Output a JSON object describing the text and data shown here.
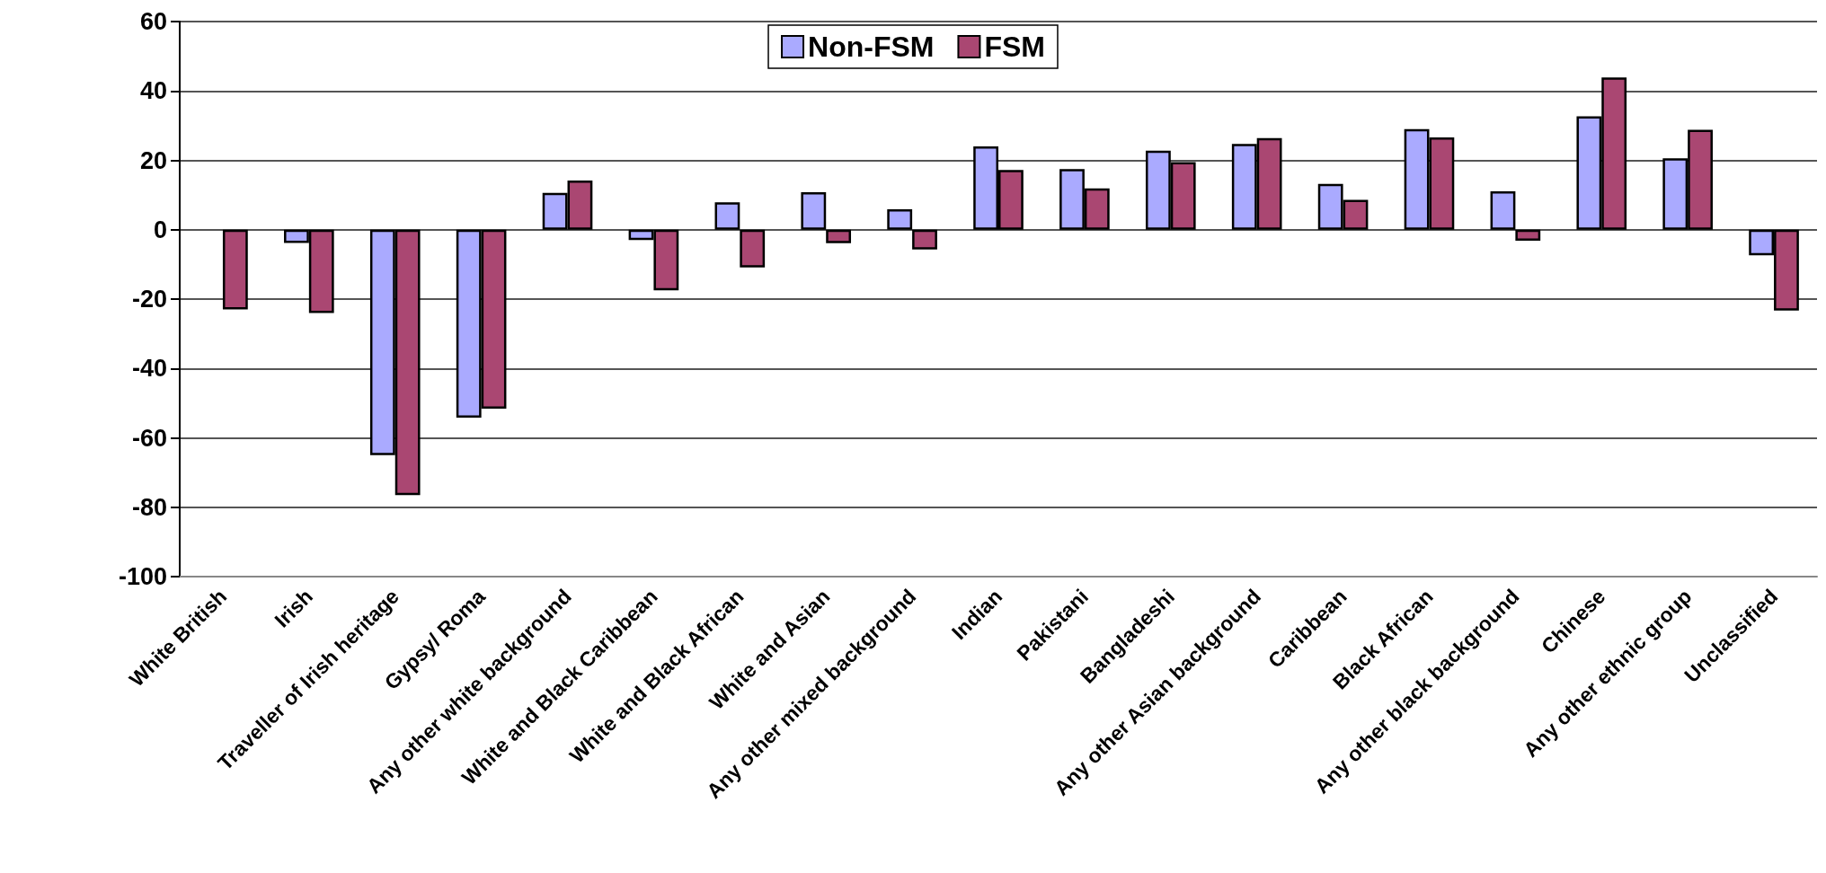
{
  "chart_data": {
    "type": "bar",
    "categories": [
      "White British",
      "Irish",
      "Traveller of Irish heritage",
      "Gypsy/ Roma",
      "Any other white background",
      "White and Black Caribbean",
      "White and Black African",
      "White and Asian",
      "Any other mixed background",
      "Indian",
      "Pakistani",
      "Bangladeshi",
      "Any other Asian background",
      "Caribbean",
      "Black African",
      "Any other black background",
      "Chinese",
      "Any other ethnic group",
      "Unclassified"
    ],
    "series": [
      {
        "name": "Non-FSM",
        "color": "#aaaaff",
        "values": [
          null,
          -3.8,
          -65.0,
          -54.2,
          10.6,
          -3.0,
          7.9,
          10.8,
          5.9,
          24.0,
          17.5,
          22.8,
          24.7,
          13.2,
          29.0,
          11.1,
          32.7,
          20.6,
          -7.4
        ]
      },
      {
        "name": "FSM",
        "color": "#aa4772",
        "values": [
          -23.0,
          -24.0,
          -76.5,
          -51.6,
          14.2,
          -17.5,
          -10.9,
          -3.9,
          -5.7,
          17.2,
          11.9,
          19.5,
          26.4,
          8.6,
          26.6,
          -3.2,
          43.9,
          28.8,
          -23.3
        ]
      }
    ],
    "ylim": [
      -100,
      60
    ],
    "yticks": [
      -100,
      -80,
      -60,
      -40,
      -20,
      0,
      20,
      40,
      60
    ],
    "grid": "y",
    "legend": "top"
  }
}
